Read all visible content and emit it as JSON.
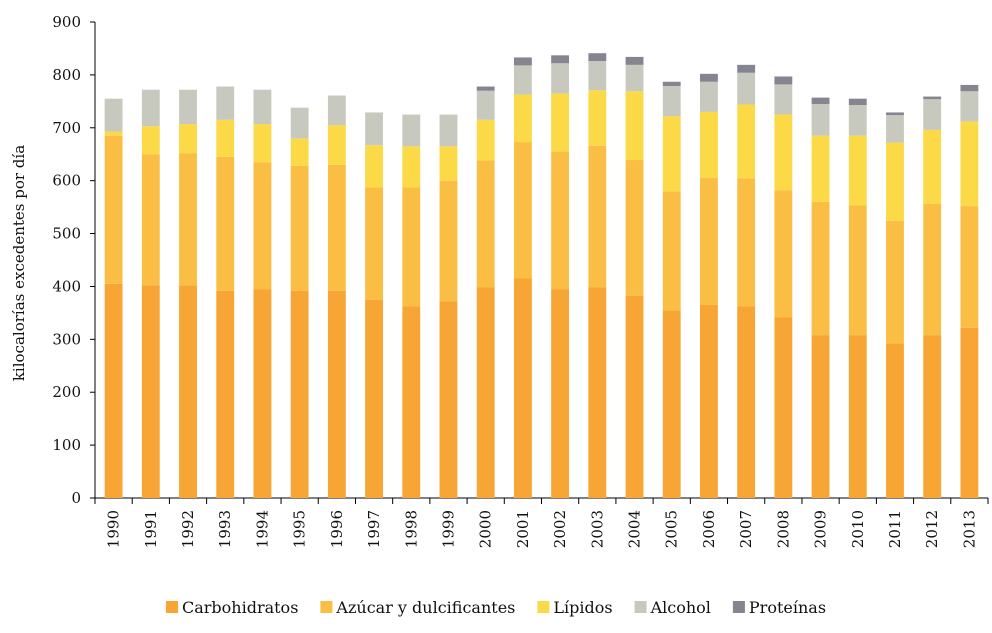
{
  "chart_data": {
    "type": "bar",
    "stacked": true,
    "title": "",
    "xlabel": "",
    "ylabel": "kilocalorías excedentes por día",
    "ylim": [
      0,
      900
    ],
    "yticks": [
      0,
      100,
      200,
      300,
      400,
      500,
      600,
      700,
      800,
      900
    ],
    "grid": false,
    "legend_position": "bottom",
    "categories": [
      "1990",
      "1991",
      "1992",
      "1993",
      "1994",
      "1995",
      "1996",
      "1997",
      "1998",
      "1999",
      "2000",
      "2001",
      "2002",
      "2003",
      "2004",
      "2005",
      "2006",
      "2007",
      "2008",
      "2009",
      "2010",
      "2011",
      "2012",
      "2013"
    ],
    "series": [
      {
        "name": "Carbohidratos",
        "color": "#F7A535",
        "values": [
          405,
          402,
          402,
          392,
          395,
          392,
          392,
          375,
          362,
          372,
          398,
          415,
          395,
          398,
          382,
          355,
          365,
          362,
          342,
          308,
          308,
          292,
          308,
          322
        ]
      },
      {
        "name": "Azúcar y dulcificantes",
        "color": "#FBBE44",
        "values": [
          280,
          248,
          250,
          253,
          240,
          236,
          238,
          212,
          225,
          228,
          240,
          258,
          260,
          268,
          257,
          225,
          240,
          242,
          240,
          252,
          245,
          232,
          248,
          230
        ]
      },
      {
        "name": "Lípidos",
        "color": "#FCD946",
        "values": [
          8,
          53,
          55,
          70,
          72,
          52,
          75,
          80,
          78,
          65,
          77,
          90,
          110,
          105,
          130,
          142,
          125,
          140,
          143,
          125,
          132,
          148,
          140,
          160
        ]
      },
      {
        "name": "Alcohol",
        "color": "#C8C9BE",
        "values": [
          62,
          69,
          65,
          63,
          65,
          58,
          56,
          62,
          60,
          60,
          55,
          55,
          57,
          55,
          50,
          57,
          57,
          60,
          57,
          60,
          58,
          52,
          58,
          57
        ]
      },
      {
        "name": "Proteínas",
        "color": "#848590",
        "values": [
          0,
          0,
          0,
          0,
          0,
          0,
          0,
          0,
          0,
          0,
          8,
          15,
          15,
          15,
          15,
          8,
          15,
          15,
          15,
          12,
          12,
          5,
          5,
          12
        ]
      }
    ]
  }
}
